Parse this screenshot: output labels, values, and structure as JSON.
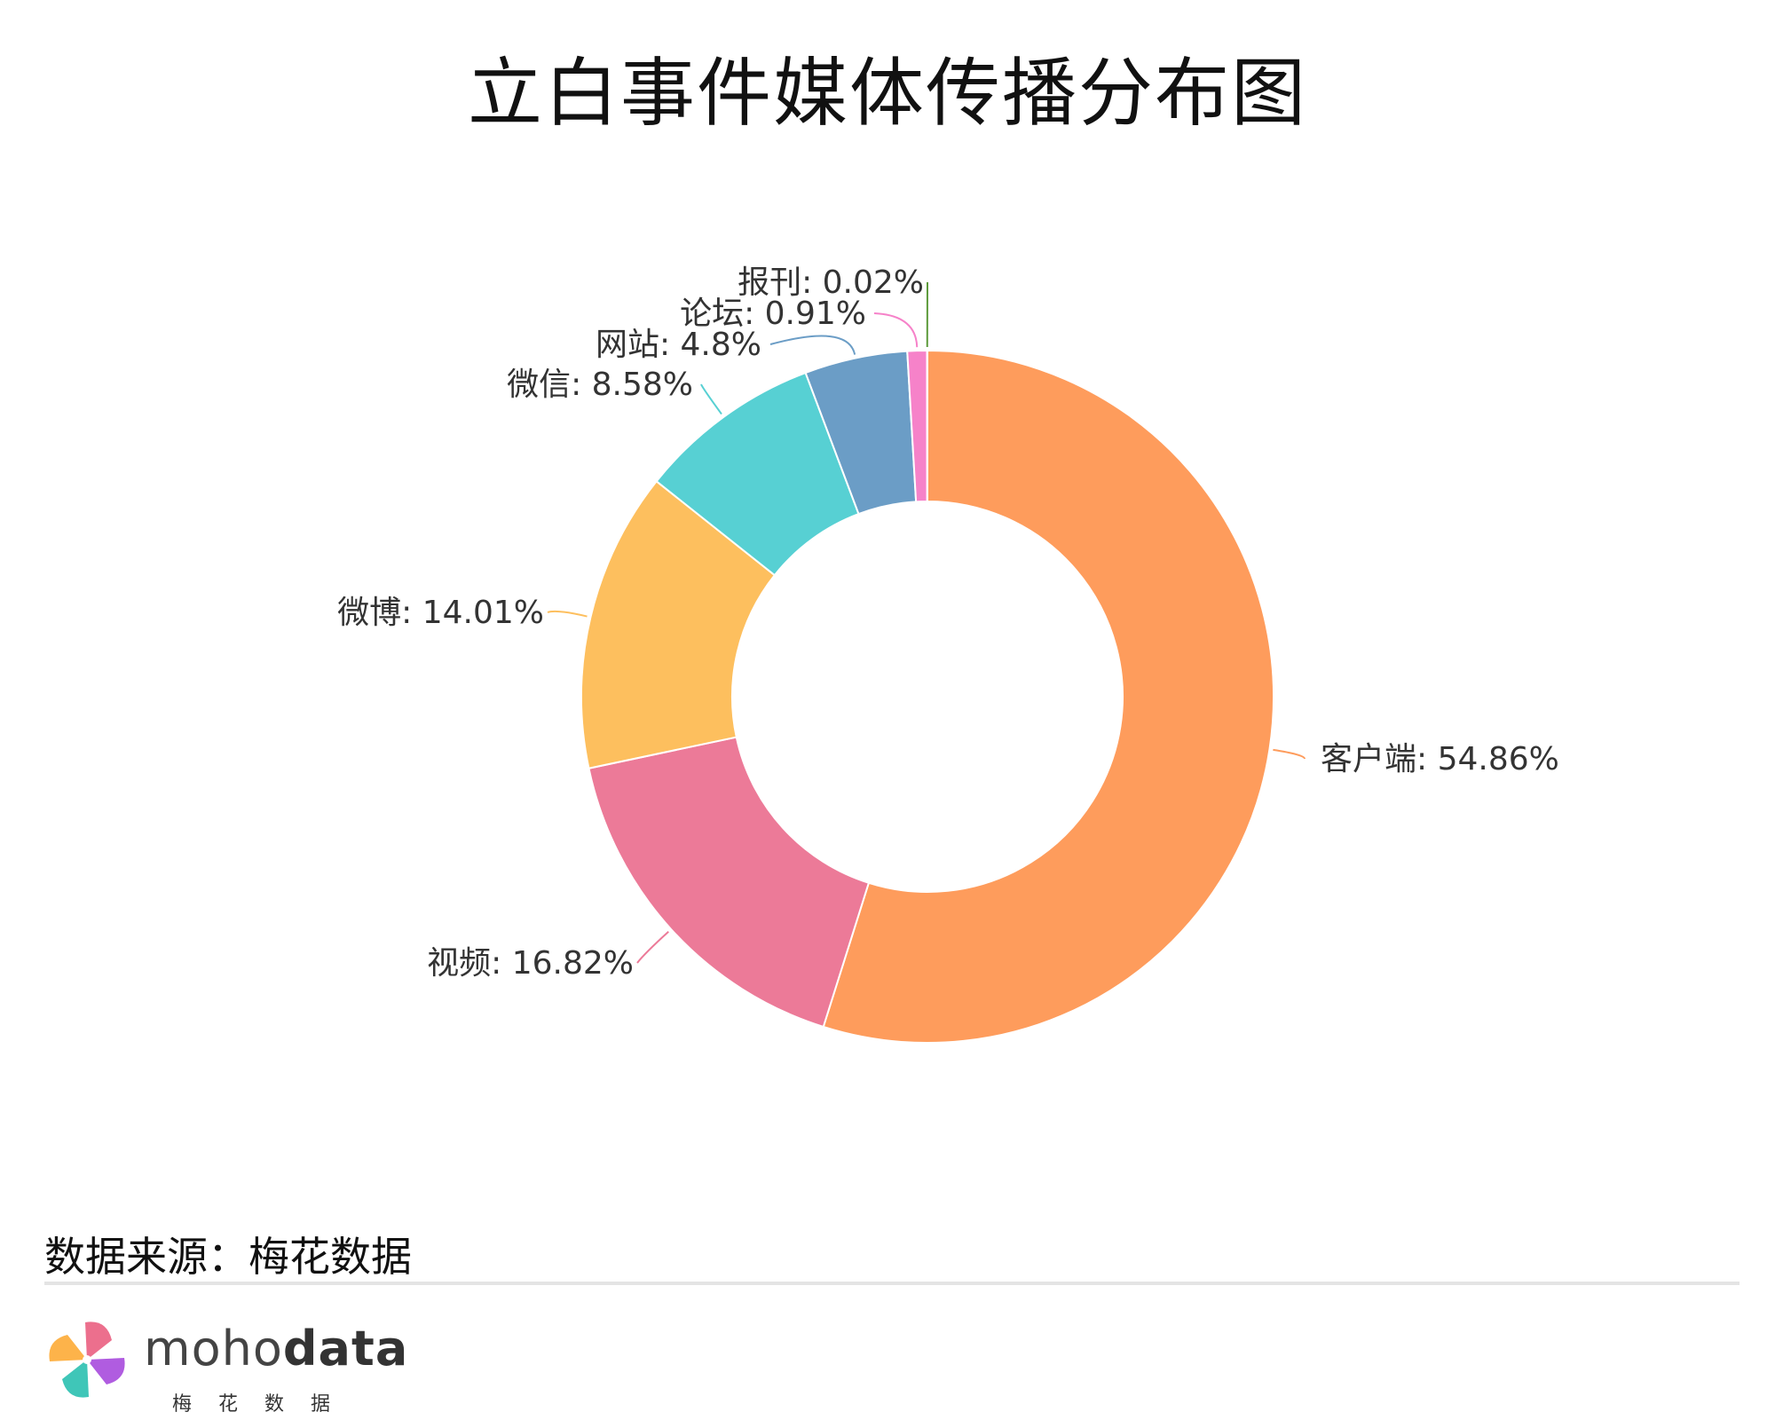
{
  "chart_data": {
    "type": "pie",
    "donut": true,
    "title": "立白事件媒体传播分布图",
    "slices": [
      {
        "label": "客户端",
        "value": 54.86,
        "display": "54.86%",
        "color": "#fe9c5c"
      },
      {
        "label": "视频",
        "value": 16.82,
        "display": "16.82%",
        "color": "#ec7a98"
      },
      {
        "label": "微博",
        "value": 14.01,
        "display": "14.01%",
        "color": "#fdbf5e"
      },
      {
        "label": "微信",
        "value": 8.58,
        "display": "8.58%",
        "color": "#57d0d3"
      },
      {
        "label": "网站",
        "value": 4.8,
        "display": "4.8%",
        "color": "#6b9dc6"
      },
      {
        "label": "论坛",
        "value": 0.91,
        "display": "0.91%",
        "color": "#f682c9"
      },
      {
        "label": "报刊",
        "value": 0.02,
        "display": "0.02%",
        "color": "#5c9a3a"
      }
    ]
  },
  "footer": {
    "source": "数据来源：梅花数据",
    "brand_light": "moho",
    "brand_bold": "data",
    "brand_sub": "梅花数据"
  }
}
